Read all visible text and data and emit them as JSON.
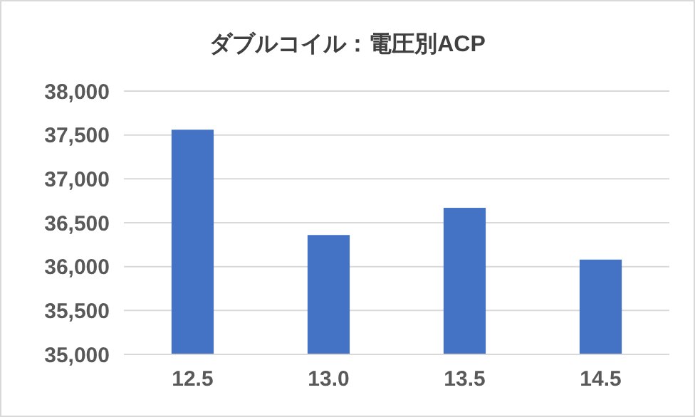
{
  "chart_data": {
    "type": "bar",
    "title": "ダブルコイル：電圧別ACP",
    "categories": [
      "12.5",
      "13.0",
      "13.5",
      "14.5"
    ],
    "values": [
      37560,
      36360,
      36670,
      36080
    ],
    "color": "#4472c4",
    "ylim": [
      35000,
      38000
    ],
    "yticks": [
      {
        "value": 35000,
        "label": "35,000"
      },
      {
        "value": 35500,
        "label": "35,500"
      },
      {
        "value": 36000,
        "label": "36,000"
      },
      {
        "value": 36500,
        "label": "36,500"
      },
      {
        "value": 37000,
        "label": "37,000"
      },
      {
        "value": 37500,
        "label": "37,500"
      },
      {
        "value": 38000,
        "label": "38,000"
      }
    ],
    "grid": "y"
  }
}
